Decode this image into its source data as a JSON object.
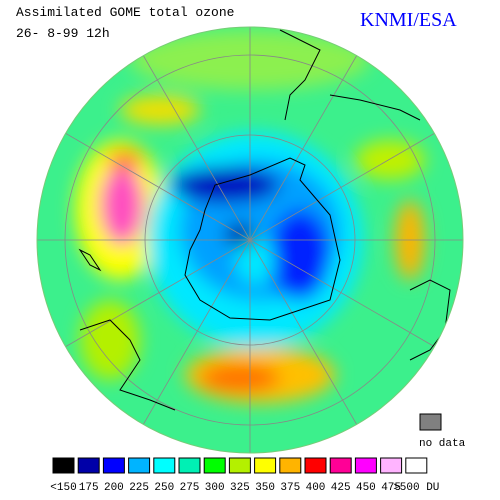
{
  "header": {
    "title": "Assimilated GOME total ozone",
    "date": "26- 8-99 12h",
    "source": "KNMI/ESA"
  },
  "no_data": {
    "label": "no data",
    "color": "#808080"
  },
  "legend": [
    {
      "label": "<150",
      "color": "#000000"
    },
    {
      "label": "175",
      "color": "#0000a8"
    },
    {
      "label": "200",
      "color": "#0000ff"
    },
    {
      "label": "225",
      "color": "#00b4ff"
    },
    {
      "label": "250",
      "color": "#00ffff"
    },
    {
      "label": "275",
      "color": "#00f0b4"
    },
    {
      "label": "300",
      "color": "#00ff00"
    },
    {
      "label": "325",
      "color": "#b4f000"
    },
    {
      "label": "350",
      "color": "#ffff00"
    },
    {
      "label": "375",
      "color": "#ffb400"
    },
    {
      "label": "400",
      "color": "#ff0000"
    },
    {
      "label": "425",
      "color": "#ff0096"
    },
    {
      "label": "450",
      "color": "#ff00ff"
    },
    {
      "label": "475",
      "color": "#ffb4ff"
    },
    {
      "label": ">500 DU",
      "color": "#ffffff"
    }
  ]
}
